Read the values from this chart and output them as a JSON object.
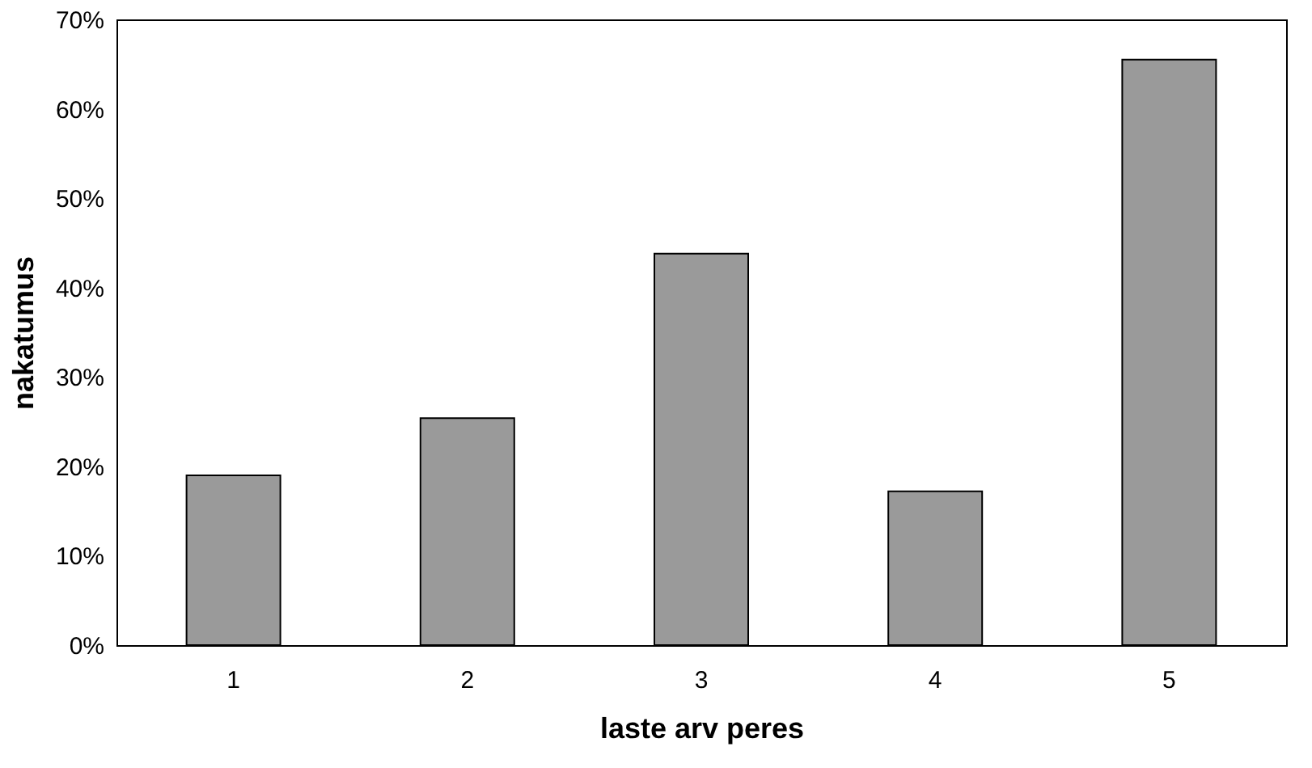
{
  "chart_data": {
    "type": "bar",
    "xlabel": "laste arv peres",
    "ylabel": "nakatumus",
    "categories": [
      "1",
      "2",
      "3",
      "4",
      "5"
    ],
    "values": [
      19,
      25.4,
      43.8,
      17.2,
      65.5
    ],
    "color": "#9a9a9a",
    "ylim": [
      0,
      70
    ],
    "yticks": [
      {
        "value": 0,
        "label": "0%"
      },
      {
        "value": 10,
        "label": "10%"
      },
      {
        "value": 20,
        "label": "20%"
      },
      {
        "value": 30,
        "label": "30%"
      },
      {
        "value": 40,
        "label": "40%"
      },
      {
        "value": 50,
        "label": "50%"
      },
      {
        "value": 60,
        "label": "60%"
      },
      {
        "value": 70,
        "label": "70%"
      }
    ],
    "grid": false
  }
}
